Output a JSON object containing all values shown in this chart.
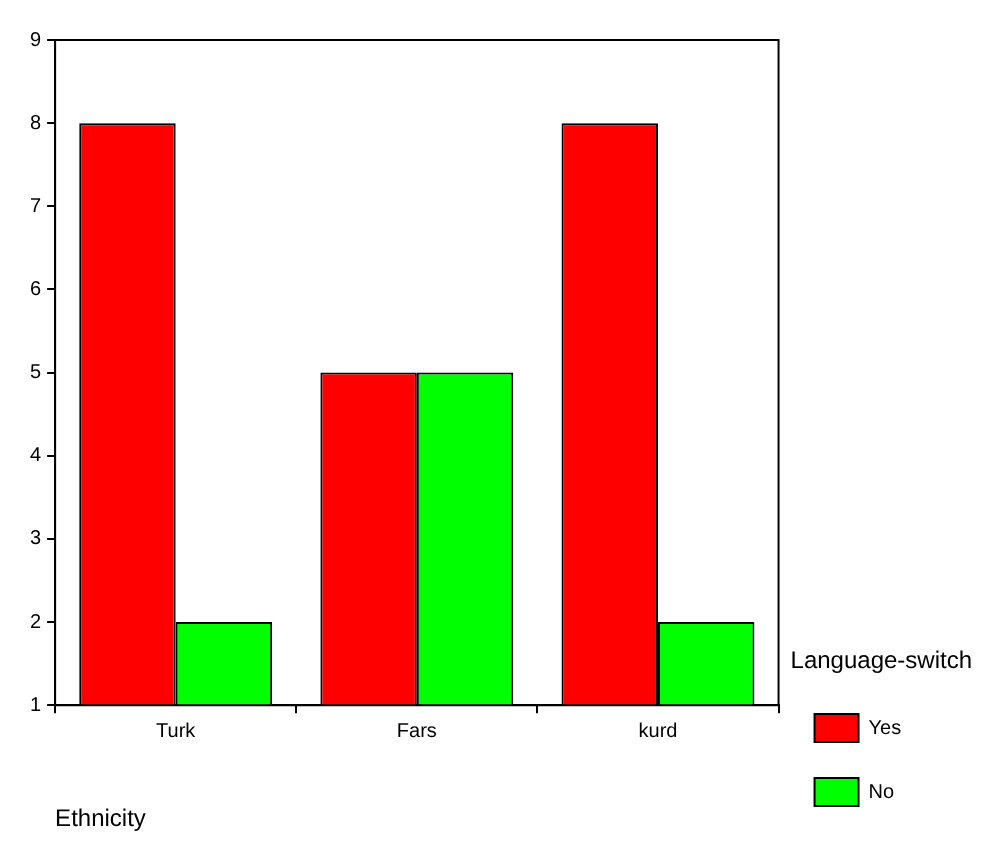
{
  "chart_data": {
    "type": "bar",
    "categories": [
      "Turk",
      "Fars",
      "kurd"
    ],
    "series": [
      {
        "name": "Yes",
        "color": "#ff0000",
        "values": [
          8,
          5,
          8
        ]
      },
      {
        "name": "No",
        "color": "#00ff00",
        "values": [
          2,
          5,
          2
        ]
      }
    ],
    "xlabel": "Ethnicity",
    "legend_title": "Language-switch",
    "legend": "right",
    "grid": false,
    "ylim": [
      1,
      9
    ],
    "yticks": [
      1,
      2,
      3,
      4,
      5,
      6,
      7,
      8,
      9
    ]
  }
}
